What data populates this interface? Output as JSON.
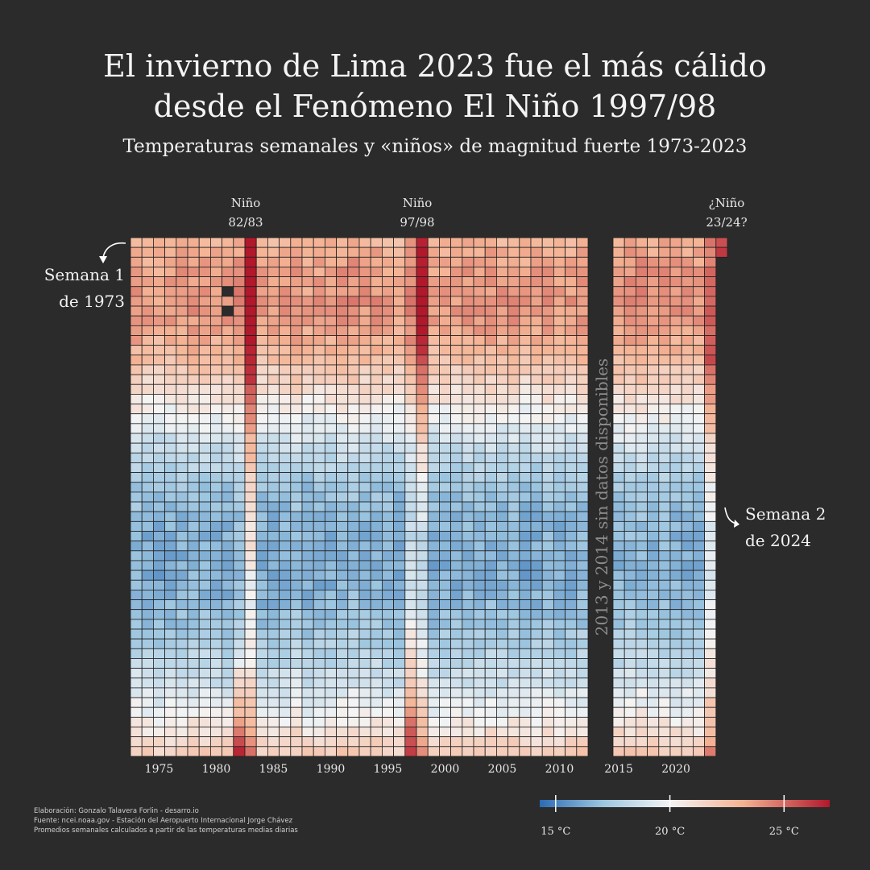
{
  "title_lines": [
    "El invierno de Lima 2023 fue el más cálido",
    "desde el Fenómeno El Niño 1997/98"
  ],
  "subtitle": "Temperaturas semanales y «niños» de magnitud fuerte 1973-2023",
  "annotations": {
    "nino_8283": [
      "Niño",
      "82/83"
    ],
    "nino_9798": [
      "Niño",
      "97/98"
    ],
    "nino_2324": [
      "¿Niño",
      "23/24?"
    ],
    "start": [
      "Semana 1",
      "de 1973"
    ],
    "end": [
      "Semana 2",
      "de 2024"
    ],
    "gap": "2013 y 2014 sin datos disponibles"
  },
  "credits": [
    "Elaboración: Gonzalo Talavera Forlin - desarro.io",
    "Fuente: ncei.noaa.gov - Estación del Aeropuerto Internacional Jorge Chávez",
    "Promedios semanales calculados a partir de las temperaturas medias diarias"
  ],
  "colors": {
    "background": "#2b2b2b",
    "cold": "#2c6bb3",
    "neutral": "#f7f7f7",
    "warm": "#b2182b",
    "missing": "#2b2b2b",
    "grid": "#1f1f1f"
  },
  "chart_data": {
    "type": "heatmap",
    "x_label": "",
    "y_label": "",
    "x_ticks": [
      1975,
      1980,
      1985,
      1990,
      1995,
      2000,
      2005,
      2010,
      2015,
      2020
    ],
    "years": [
      1973,
      1974,
      1975,
      1976,
      1977,
      1978,
      1979,
      1980,
      1981,
      1982,
      1983,
      1984,
      1985,
      1986,
      1987,
      1988,
      1989,
      1990,
      1991,
      1992,
      1993,
      1994,
      1995,
      1996,
      1997,
      1998,
      1999,
      2000,
      2001,
      2002,
      2003,
      2004,
      2005,
      2006,
      2007,
      2008,
      2009,
      2010,
      2011,
      2012,
      2015,
      2016,
      2017,
      2018,
      2019,
      2020,
      2021,
      2022,
      2023,
      2024
    ],
    "missing_years": [
      2013,
      2014
    ],
    "weeks": 53,
    "value_unit": "°C",
    "color_scale": {
      "min": 14.3,
      "max": 27.0,
      "mid": 20
    },
    "legend_ticks": [
      {
        "value": 15,
        "label": "15 °C"
      },
      {
        "value": 20,
        "label": "20 °C"
      },
      {
        "value": 25,
        "label": "25 °C"
      }
    ],
    "weekly_climatology": [
      23.1,
      23.4,
      23.6,
      23.8,
      23.8,
      23.9,
      24.0,
      23.9,
      23.8,
      23.6,
      23.3,
      23.0,
      22.6,
      22.1,
      21.7,
      21.3,
      20.8,
      20.3,
      19.9,
      19.5,
      19.0,
      18.6,
      18.2,
      17.9,
      17.6,
      17.3,
      17.1,
      17.0,
      16.8,
      16.7,
      16.6,
      16.6,
      16.5,
      16.5,
      16.5,
      16.6,
      16.7,
      16.8,
      17.0,
      17.2,
      17.5,
      17.7,
      18.0,
      18.3,
      18.6,
      18.9,
      19.3,
      19.6,
      20.0,
      20.5,
      21.0,
      21.5,
      22.0
    ],
    "year_anomalies": [
      0.2,
      -0.5,
      -0.8,
      -0.3,
      -0.1,
      0.1,
      0.1,
      -0.2,
      -0.3,
      0.6,
      2.4,
      -0.3,
      -0.5,
      -0.3,
      0.4,
      -0.6,
      -0.4,
      -0.2,
      0.2,
      0.4,
      -0.1,
      0.0,
      -0.3,
      -0.6,
      1.2,
      2.0,
      -0.5,
      -0.2,
      -0.3,
      0.0,
      -0.1,
      0.1,
      -0.2,
      0.0,
      -0.6,
      -0.4,
      0.3,
      -0.4,
      -0.3,
      0.1,
      0.2,
      0.5,
      0.6,
      0.1,
      0.3,
      -0.1,
      -0.2,
      -0.1,
      1.6,
      1.3
    ],
    "anomaly_note": "weekly value = weekly_climatology[week] + year_anomalies[year], with El Niño 1982/83, 1997/98 and 2023/24 peaks",
    "events": [
      {
        "label": "Niño 82/83",
        "years": [
          1982,
          1983
        ]
      },
      {
        "label": "Niño 97/98",
        "years": [
          1997,
          1998
        ]
      },
      {
        "label": "¿Niño 23/24?",
        "years": [
          2023,
          2024
        ]
      }
    ],
    "start": {
      "year": 1973,
      "week": 1
    },
    "end": {
      "year": 2024,
      "week": 2
    }
  }
}
